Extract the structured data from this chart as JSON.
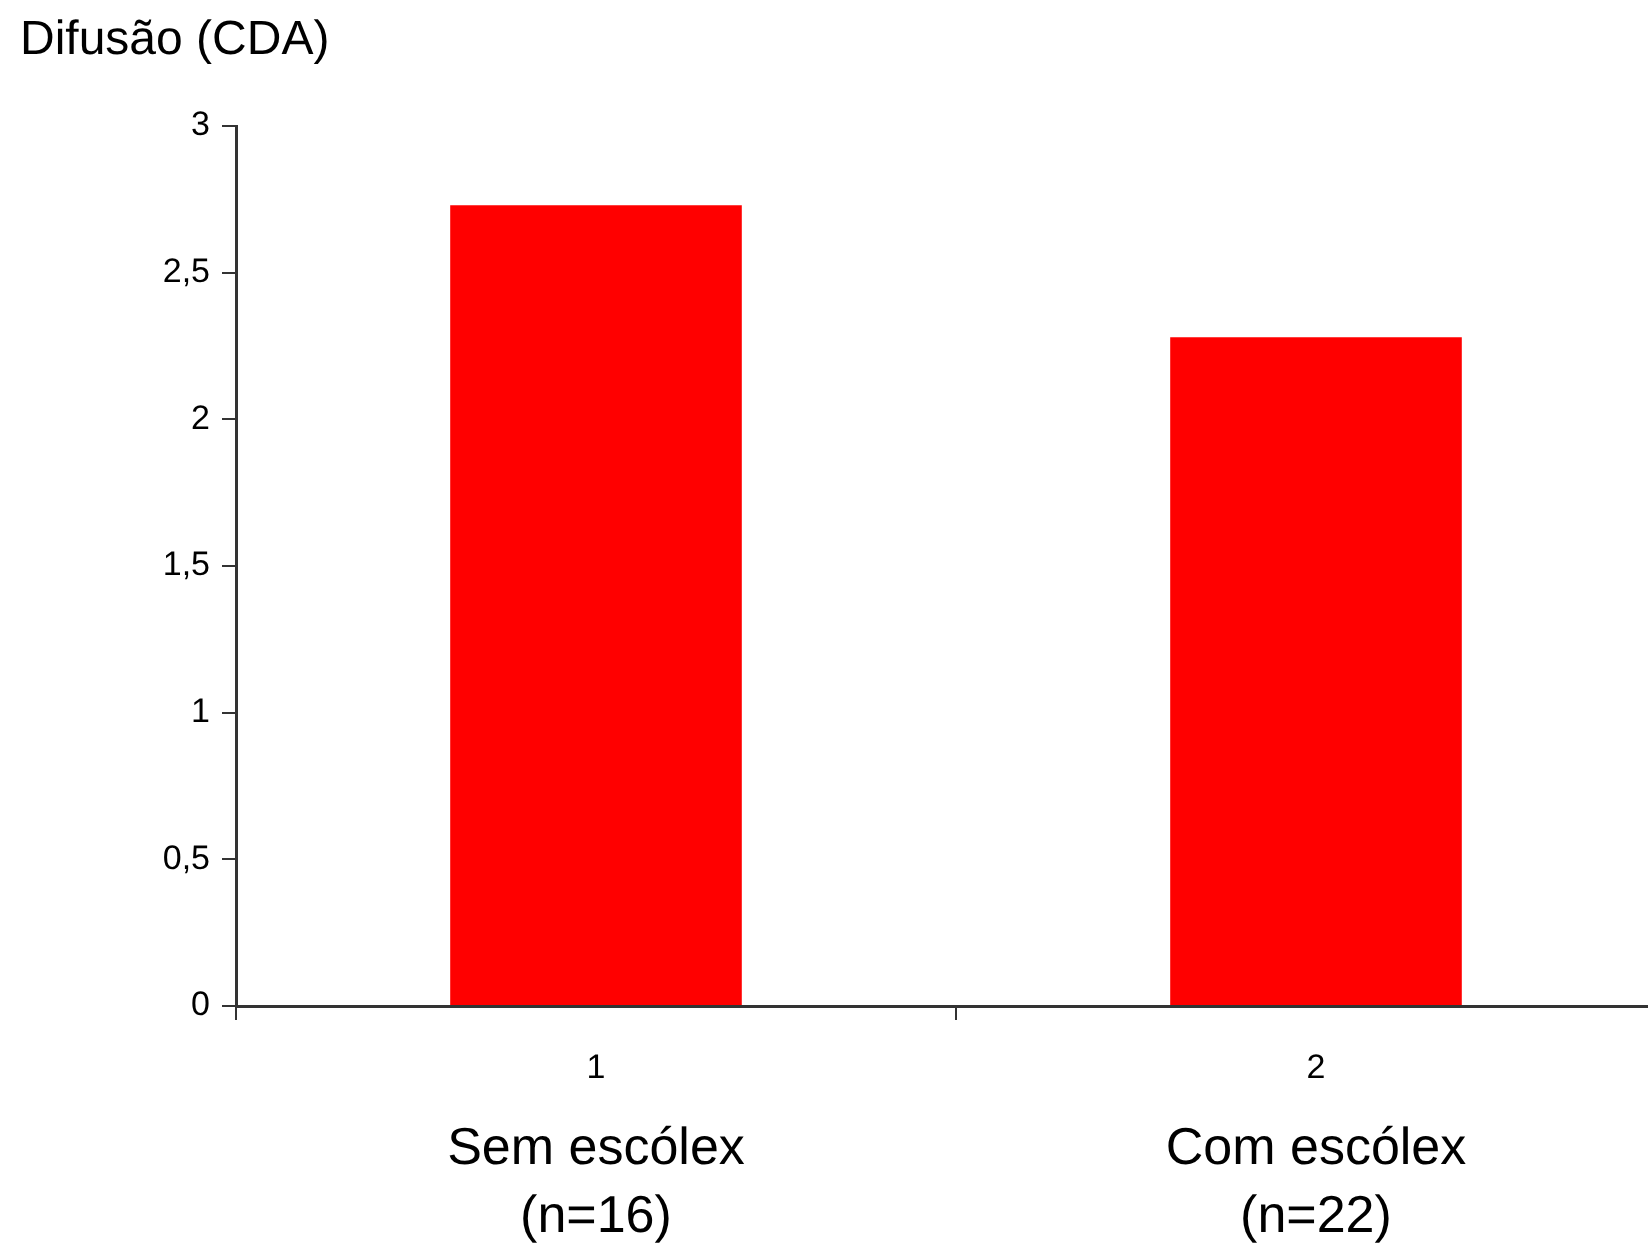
{
  "chart_data": {
    "type": "bar",
    "ylabel": "Difusão (CDA)",
    "categories": [
      "1",
      "2"
    ],
    "values": [
      2.73,
      2.28
    ],
    "color": "#ff0000",
    "ylim": [
      0,
      3
    ],
    "yticks": [
      0,
      {
        "value": 0.5,
        "label": "0,5"
      },
      1,
      {
        "value": 1.5,
        "label": "1,5"
      },
      2,
      {
        "value": 2.5,
        "label": "2,5"
      },
      3
    ],
    "annotations": [
      "Sem escólex\n(n=16)",
      "Com escólex\n(n=22)"
    ],
    "grid": false,
    "legend": false
  }
}
